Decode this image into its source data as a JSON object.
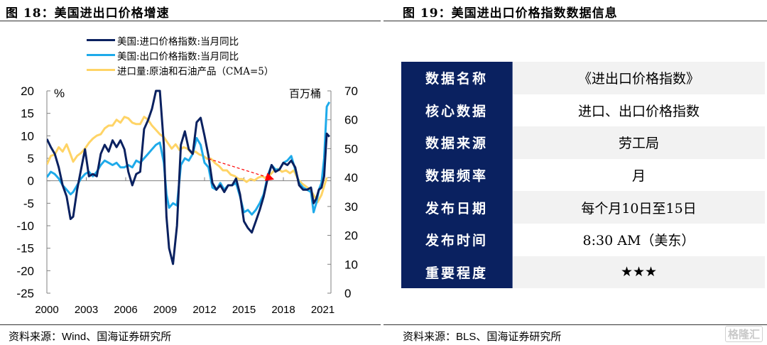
{
  "left_figure": {
    "title": "图 18：美国进出口价格增速",
    "source_prefix": "资料来源：",
    "source_latin": "Wind",
    "source_suffix": "、国海证券研究所"
  },
  "right_figure": {
    "title": "图 19：美国进出口价格指数数据信息",
    "source_prefix": "资料来源：",
    "source_latin": "BLS",
    "source_suffix": "、国海证券研究所",
    "table": [
      {
        "key": "数据名称",
        "value": "《进出口价格指数》"
      },
      {
        "key": "核心数据",
        "value": "进口、出口价格指数"
      },
      {
        "key": "数据来源",
        "value": "劳工局"
      },
      {
        "key": "数据频率",
        "value": "月"
      },
      {
        "key": "发布日期",
        "value": "每个月10日至15日"
      },
      {
        "key": "发布时间",
        "value": "8:30 AM（美东）"
      },
      {
        "key": "重要程度",
        "value": "★★★"
      }
    ]
  },
  "watermark": "格隆汇",
  "chart_data": {
    "type": "line",
    "title": "美国进出口价格增速",
    "left_axis": {
      "unit_label": "%",
      "ylim": [
        -25,
        20
      ],
      "ticks": [
        20,
        15,
        10,
        5,
        0,
        -5,
        -10,
        -15,
        -20,
        -25
      ]
    },
    "right_axis": {
      "unit_label": "百万桶",
      "ylim": [
        0,
        70
      ],
      "ticks": [
        70,
        60,
        50,
        40,
        30,
        20,
        10,
        0
      ]
    },
    "x_ticks": [
      "2000",
      "2003",
      "2006",
      "2009",
      "2012",
      "2015",
      "2018",
      "2021"
    ],
    "xlim": [
      2000.0,
      2021.6
    ],
    "legend_position": "top-center",
    "annotation": {
      "type": "dashed-arrow",
      "color": "#ff0000",
      "from": [
        2012.3,
        4.9
      ],
      "to": [
        2017.3,
        0.3
      ],
      "note": "declining trend in oil import volume"
    },
    "series": [
      {
        "name": "美国:进口价格指数:当月同比",
        "axis": "left",
        "color": "#0a2160",
        "x": [
          2000.0,
          2000.3,
          2000.6,
          2000.9,
          2001.2,
          2001.5,
          2001.8,
          2002.0,
          2002.3,
          2002.6,
          2002.9,
          2003.2,
          2003.5,
          2003.8,
          2004.1,
          2004.4,
          2004.7,
          2005.0,
          2005.3,
          2005.6,
          2005.9,
          2006.2,
          2006.5,
          2006.8,
          2007.1,
          2007.4,
          2007.7,
          2008.0,
          2008.3,
          2008.6,
          2008.9,
          2009.1,
          2009.3,
          2009.6,
          2009.9,
          2010.2,
          2010.5,
          2010.8,
          2011.1,
          2011.4,
          2011.7,
          2012.0,
          2012.3,
          2012.6,
          2012.9,
          2013.2,
          2013.5,
          2013.8,
          2014.1,
          2014.4,
          2014.7,
          2015.0,
          2015.3,
          2015.6,
          2015.9,
          2016.2,
          2016.5,
          2016.8,
          2017.1,
          2017.4,
          2017.7,
          2018.0,
          2018.3,
          2018.6,
          2018.9,
          2019.2,
          2019.5,
          2019.8,
          2020.1,
          2020.3,
          2020.5,
          2020.7,
          2020.9,
          2021.1,
          2021.3,
          2021.5
        ],
        "values": [
          9.3,
          7.5,
          6.0,
          3.0,
          -1.0,
          -3.5,
          -8.5,
          -8.0,
          -2.0,
          2.5,
          7.0,
          1.0,
          1.5,
          1.0,
          6.0,
          8.0,
          6.5,
          9.0,
          7.5,
          9.0,
          7.0,
          2.0,
          -1.0,
          1.5,
          2.0,
          11.5,
          13.5,
          16.0,
          20.0,
          20.0,
          8.0,
          -8.0,
          -15.0,
          -18.5,
          -10.0,
          8.0,
          11.0,
          7.0,
          6.0,
          13.0,
          14.0,
          10.0,
          5.5,
          -0.5,
          -2.0,
          -1.0,
          -2.5,
          -1.0,
          -1.0,
          0.5,
          -3.0,
          -9.0,
          -10.5,
          -11.5,
          -9.0,
          -6.5,
          -3.5,
          0.5,
          3.5,
          2.0,
          2.5,
          4.0,
          3.5,
          4.5,
          3.0,
          -1.0,
          -2.0,
          -2.0,
          -1.5,
          -5.0,
          -4.0,
          -2.0,
          -1.5,
          1.0,
          10.5,
          9.8
        ]
      },
      {
        "name": "美国:出口价格指数:当月同比",
        "axis": "left",
        "color": "#1eaaea",
        "x": [
          2000.0,
          2000.3,
          2000.6,
          2000.9,
          2001.2,
          2001.5,
          2001.8,
          2002.0,
          2002.3,
          2002.6,
          2002.9,
          2003.2,
          2003.5,
          2003.8,
          2004.1,
          2004.4,
          2004.7,
          2005.0,
          2005.3,
          2005.6,
          2005.9,
          2006.2,
          2006.5,
          2006.8,
          2007.1,
          2007.4,
          2007.7,
          2008.0,
          2008.3,
          2008.6,
          2008.9,
          2009.1,
          2009.3,
          2009.6,
          2009.9,
          2010.2,
          2010.5,
          2010.8,
          2011.1,
          2011.4,
          2011.7,
          2012.0,
          2012.3,
          2012.6,
          2012.9,
          2013.2,
          2013.5,
          2013.8,
          2014.1,
          2014.4,
          2014.7,
          2015.0,
          2015.3,
          2015.6,
          2015.9,
          2016.2,
          2016.5,
          2016.8,
          2017.1,
          2017.4,
          2017.7,
          2018.0,
          2018.3,
          2018.6,
          2018.9,
          2019.2,
          2019.5,
          2019.8,
          2020.1,
          2020.3,
          2020.5,
          2020.7,
          2020.9,
          2021.1,
          2021.3,
          2021.5
        ],
        "values": [
          0.8,
          2.0,
          1.5,
          0.5,
          -1.0,
          -2.0,
          -3.0,
          -2.5,
          -1.0,
          0.5,
          1.5,
          2.0,
          1.0,
          2.0,
          3.5,
          4.5,
          4.0,
          3.5,
          4.0,
          3.0,
          3.0,
          3.5,
          3.0,
          4.5,
          4.0,
          5.0,
          6.0,
          7.0,
          8.0,
          8.5,
          4.0,
          -3.0,
          -6.0,
          -5.0,
          -5.5,
          3.5,
          5.0,
          4.5,
          6.0,
          9.5,
          8.0,
          4.0,
          3.0,
          -1.5,
          -2.0,
          -0.5,
          -2.0,
          -1.0,
          -1.0,
          -0.5,
          -3.5,
          -7.0,
          -6.5,
          -7.5,
          -6.5,
          -5.0,
          -3.0,
          1.0,
          3.5,
          2.5,
          2.5,
          4.0,
          4.5,
          5.5,
          2.5,
          -0.5,
          -1.5,
          -2.0,
          -2.5,
          -7.0,
          -5.0,
          -2.0,
          -0.5,
          5.0,
          16.5,
          17.5
        ]
      },
      {
        "name": "进口量:原油和石油产品（CMA=5）",
        "axis": "right",
        "color": "#ffd466",
        "x": [
          2000.0,
          2000.3,
          2000.6,
          2000.9,
          2001.2,
          2001.5,
          2001.8,
          2002.0,
          2002.3,
          2002.6,
          2002.9,
          2003.2,
          2003.5,
          2003.8,
          2004.1,
          2004.4,
          2004.7,
          2005.0,
          2005.3,
          2005.6,
          2005.9,
          2006.2,
          2006.5,
          2006.8,
          2007.1,
          2007.4,
          2007.7,
          2008.0,
          2008.3,
          2008.6,
          2008.9,
          2009.2,
          2009.5,
          2009.8,
          2010.1,
          2010.4,
          2010.7,
          2011.0,
          2011.3,
          2011.6,
          2011.9,
          2012.2,
          2012.5,
          2012.8,
          2013.1,
          2013.4,
          2013.7,
          2014.0,
          2014.3,
          2014.6,
          2014.9,
          2015.2,
          2015.5,
          2015.8,
          2016.1,
          2016.4,
          2016.7,
          2017.0,
          2017.3,
          2017.6,
          2017.9,
          2018.2,
          2018.5,
          2018.8,
          2019.1,
          2019.4,
          2019.7,
          2020.0,
          2020.3,
          2020.6,
          2020.9,
          2021.1,
          2021.3
        ],
        "values": [
          44.5,
          47.5,
          48.0,
          50.5,
          49.0,
          51.5,
          48.0,
          45.5,
          47.5,
          48.5,
          50.0,
          52.0,
          53.5,
          54.5,
          55.0,
          57.0,
          58.0,
          58.0,
          60.0,
          59.0,
          61.0,
          60.5,
          59.0,
          58.5,
          58.5,
          61.0,
          60.0,
          58.0,
          56.5,
          55.0,
          54.0,
          52.0,
          50.0,
          51.5,
          49.5,
          50.5,
          50.0,
          48.5,
          49.0,
          48.0,
          47.5,
          46.5,
          46.5,
          45.0,
          44.0,
          42.5,
          42.5,
          41.0,
          40.5,
          39.5,
          39.5,
          38.5,
          39.5,
          39.0,
          40.0,
          40.5,
          39.5,
          41.0,
          42.5,
          43.0,
          42.0,
          42.5,
          41.5,
          42.5,
          39.5,
          38.0,
          37.0,
          36.0,
          34.0,
          31.5,
          34.0,
          37.0,
          40.0
        ]
      }
    ]
  }
}
